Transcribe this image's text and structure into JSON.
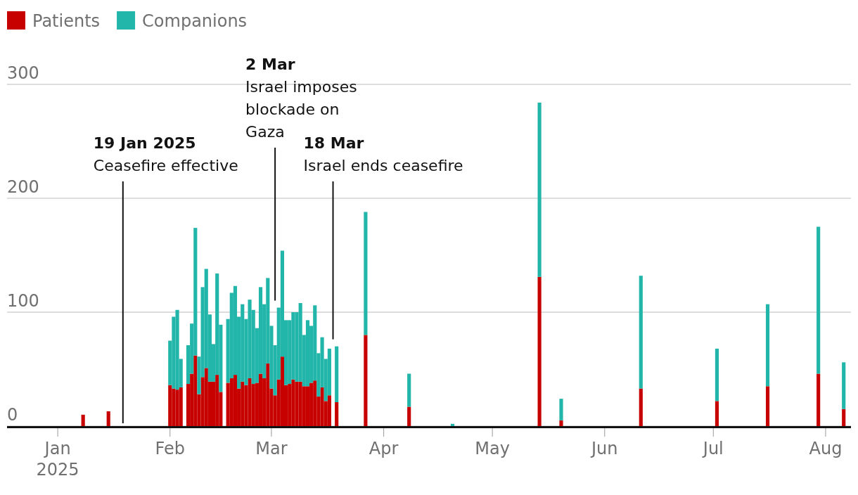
{
  "chart_data": {
    "type": "bar",
    "stacked": true,
    "legend": "top left",
    "grid": "y",
    "x": [
      "2025-01-08",
      "2025-01-15",
      "2025-02-01",
      "2025-02-02",
      "2025-02-03",
      "2025-02-04",
      "2025-02-06",
      "2025-02-07",
      "2025-02-08",
      "2025-02-09",
      "2025-02-10",
      "2025-02-11",
      "2025-02-12",
      "2025-02-13",
      "2025-02-14",
      "2025-02-15",
      "2025-02-17",
      "2025-02-18",
      "2025-02-19",
      "2025-02-20",
      "2025-02-21",
      "2025-02-22",
      "2025-02-23",
      "2025-02-24",
      "2025-02-25",
      "2025-02-26",
      "2025-02-27",
      "2025-02-28",
      "2025-03-01",
      "2025-03-02",
      "2025-03-03",
      "2025-03-04",
      "2025-03-05",
      "2025-03-06",
      "2025-03-07",
      "2025-03-08",
      "2025-03-09",
      "2025-03-10",
      "2025-03-11",
      "2025-03-12",
      "2025-03-13",
      "2025-03-14",
      "2025-03-15",
      "2025-03-16",
      "2025-03-17",
      "2025-03-19",
      "2025-03-27",
      "2025-04-08",
      "2025-04-20",
      "2025-05-14",
      "2025-05-20",
      "2025-06-11",
      "2025-07-02",
      "2025-07-16",
      "2025-07-30",
      "2025-08-06"
    ],
    "series": [
      {
        "name": "Patients",
        "color": "#c70000",
        "values": [
          10,
          13,
          36,
          33,
          32,
          34,
          37,
          46,
          62,
          28,
          43,
          51,
          39,
          39,
          45,
          30,
          38,
          42,
          45,
          33,
          39,
          36,
          42,
          37,
          38,
          46,
          42,
          55,
          33,
          27,
          41,
          61,
          36,
          37,
          41,
          39,
          39,
          35,
          35,
          38,
          40,
          26,
          34,
          22,
          27,
          21,
          80,
          17,
          0,
          131,
          5,
          33,
          22,
          35,
          46,
          15
        ]
      },
      {
        "name": "Companions",
        "color": "#22b5a9",
        "values": [
          0,
          0,
          39,
          63,
          70,
          25,
          34,
          44,
          112,
          33,
          79,
          87,
          59,
          33,
          89,
          59,
          56,
          75,
          78,
          63,
          68,
          58,
          69,
          65,
          48,
          76,
          65,
          75,
          55,
          44,
          63,
          93,
          57,
          56,
          59,
          61,
          69,
          45,
          58,
          50,
          66,
          38,
          44,
          37,
          41,
          49,
          108,
          29,
          2,
          153,
          19,
          99,
          46,
          72,
          129,
          41
        ]
      }
    ],
    "xlim": [
      "2024-12-18",
      "2025-08-08"
    ],
    "xticks": [
      {
        "value": "2025-01-01",
        "label": "Jan\n2025"
      },
      {
        "value": "2025-02-01",
        "label": "Feb"
      },
      {
        "value": "2025-03-01",
        "label": "Mar"
      },
      {
        "value": "2025-04-01",
        "label": "Apr"
      },
      {
        "value": "2025-05-01",
        "label": "May"
      },
      {
        "value": "2025-06-01",
        "label": "Jun"
      },
      {
        "value": "2025-07-01",
        "label": "Jul"
      },
      {
        "value": "2025-08-01",
        "label": "Aug"
      }
    ],
    "ylim": [
      0,
      300
    ],
    "yticks": [
      0,
      100,
      200,
      300
    ],
    "ref_lines": [
      {
        "axis": "x",
        "value": "2025-01-19",
        "label": "19 Jan 2025\nCeasefire effective"
      },
      {
        "axis": "x",
        "value": "2025-03-02",
        "label": "2 Mar\nIsrael imposes\nblockade on\nGaza"
      },
      {
        "axis": "x",
        "value": "2025-03-18",
        "label": "18 Mar\nIsrael ends ceasefire"
      }
    ]
  }
}
